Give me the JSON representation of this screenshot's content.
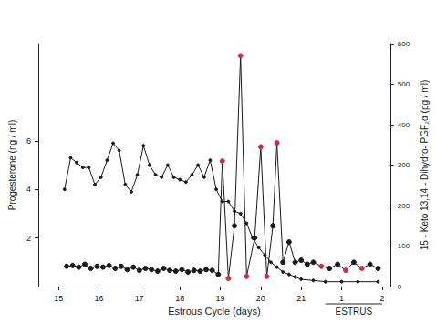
{
  "chart_data": {
    "type": "line",
    "x_label": "Estrous Cycle (days)",
    "y_label": "Progesterone (ng / ml)",
    "y2_label": "15 - Keto 13,14 - Dihydro- PGF₂α (pg / ml)",
    "xlim": [
      14.5,
      23.2
    ],
    "xticks": [
      15,
      16,
      17,
      18,
      19,
      20,
      21,
      {
        "value": 22,
        "label": "1"
      },
      {
        "value": 23,
        "label": "2"
      }
    ],
    "ylim": [
      0,
      10
    ],
    "yticks": [
      2,
      4,
      6
    ],
    "y2lim": [
      0,
      600
    ],
    "y2ticks": [
      0,
      100,
      200,
      300,
      400,
      500,
      600
    ],
    "grid": false,
    "annotations": [
      {
        "text": "ESTRUS",
        "x_start": 21.6,
        "x_end": 23.0
      }
    ],
    "series": [
      {
        "color": "#1a1a1a",
        "marker": "circle",
        "line_style": "solid",
        "x": [
          15.15,
          15.3,
          15.45,
          15.6,
          15.75,
          15.9,
          16.05,
          16.2,
          16.35,
          16.5,
          16.65,
          16.8,
          16.95,
          17.1,
          17.25,
          17.4,
          17.55,
          17.7,
          17.85,
          18.0,
          18.15,
          18.3,
          18.45,
          18.6,
          18.75,
          18.9,
          19.05,
          19.2,
          19.35,
          19.5,
          19.65,
          19.8,
          19.95,
          20.1,
          20.25,
          20.4,
          20.55,
          20.7,
          20.85,
          21.0,
          21.3,
          21.6,
          22.0,
          22.4,
          22.9
        ],
        "values": [
          4.0,
          5.3,
          5.1,
          4.9,
          4.9,
          4.2,
          4.5,
          5.2,
          5.9,
          5.6,
          4.2,
          3.9,
          4.6,
          5.8,
          5.0,
          4.6,
          4.5,
          5.0,
          4.5,
          4.4,
          4.3,
          4.6,
          5.0,
          4.5,
          5.2,
          4.0,
          3.5,
          3.5,
          3.1,
          3.0,
          2.6,
          2.0,
          1.6,
          1.3,
          1.0,
          0.8,
          0.6,
          0.5,
          0.4,
          0.3,
          0.25,
          0.2,
          0.2,
          0.2,
          0.2
        ]
      },
      {
        "axis": "y2",
        "color": "#1a1a1a",
        "marker": "circle",
        "line_style": "solid",
        "x": [
          15.2,
          15.35,
          15.5,
          15.65,
          15.8,
          15.95,
          16.1,
          16.25,
          16.4,
          16.55,
          16.7,
          16.85,
          17.0,
          17.15,
          17.3,
          17.45,
          17.6,
          17.75,
          17.9,
          18.05,
          18.2,
          18.35,
          18.5,
          18.65,
          18.8,
          18.95,
          19.05,
          19.2,
          19.35,
          19.5,
          19.65,
          19.85,
          20.0,
          20.15,
          20.3,
          20.4,
          20.55,
          20.7,
          20.85,
          21.0,
          21.15,
          21.3,
          21.5,
          21.7,
          21.9,
          22.1,
          22.3,
          22.5,
          22.7,
          22.9
        ],
        "values": [
          50,
          52,
          48,
          55,
          45,
          50,
          48,
          52,
          45,
          50,
          42,
          48,
          40,
          45,
          42,
          38,
          45,
          40,
          38,
          42,
          36,
          40,
          38,
          42,
          40,
          30,
          310,
          20,
          150,
          570,
          25,
          120,
          345,
          25,
          150,
          355,
          60,
          110,
          60,
          65,
          55,
          60,
          50,
          45,
          55,
          40,
          60,
          45,
          55,
          45
        ],
        "colors": [
          "#1a1a1a",
          "#1a1a1a",
          "#1a1a1a",
          "#1a1a1a",
          "#1a1a1a",
          "#1a1a1a",
          "#1a1a1a",
          "#1a1a1a",
          "#1a1a1a",
          "#1a1a1a",
          "#1a1a1a",
          "#1a1a1a",
          "#1a1a1a",
          "#1a1a1a",
          "#1a1a1a",
          "#1a1a1a",
          "#1a1a1a",
          "#1a1a1a",
          "#1a1a1a",
          "#1a1a1a",
          "#1a1a1a",
          "#1a1a1a",
          "#1a1a1a",
          "#1a1a1a",
          "#1a1a1a",
          "#1a1a1a",
          "#c8304a",
          "#c8304a",
          "#1a1a1a",
          "#c8304a",
          "#c8304a",
          "#1a1a1a",
          "#c8304a",
          "#c8304a",
          "#1a1a1a",
          "#c8304a",
          "#1a1a1a",
          "#1a1a1a",
          "#1a1a1a",
          "#1a1a1a",
          "#1a1a1a",
          "#1a1a1a",
          "#c8304a",
          "#1a1a1a",
          "#1a1a1a",
          "#c8304a",
          "#1a1a1a",
          "#c8304a",
          "#1a1a1a",
          "#1a1a1a"
        ]
      }
    ]
  }
}
